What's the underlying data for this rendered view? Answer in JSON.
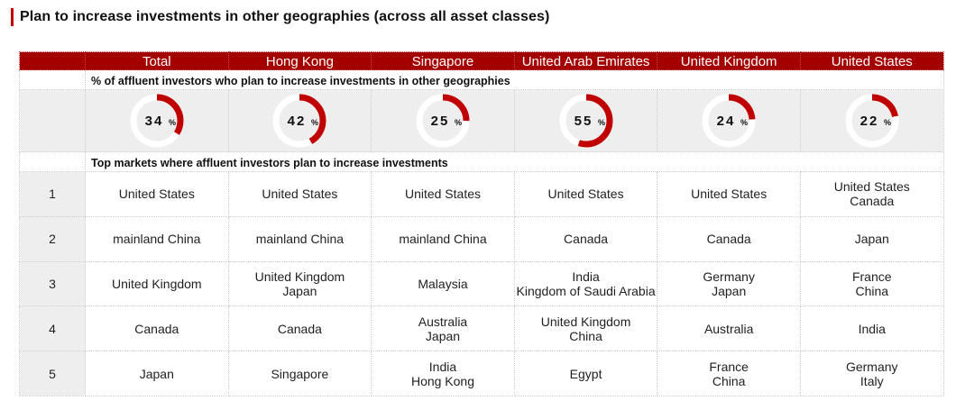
{
  "title": "Plan to increase investments in other geographies (across all asset classes)",
  "columns": [
    "Total",
    "Hong Kong",
    "Singapore",
    "United Arab Emirates",
    "United Kingdom",
    "United States"
  ],
  "section1_label": "% of affluent investors who plan to increase investments in other geographies",
  "section2_label": "Top markets where affluent investors plan to increase investments",
  "percent_symbol": "%",
  "colors": {
    "accent": "#c00000",
    "header_bg": "#a50000",
    "ring_track": "#ffffff",
    "row_band": "#eeeeee"
  },
  "chart_data": {
    "type": "table",
    "title": "Plan to increase investments in other geographies (across all asset classes)",
    "categories": [
      "Total",
      "Hong Kong",
      "Singapore",
      "United Arab Emirates",
      "United Kingdom",
      "United States"
    ],
    "series": [
      {
        "name": "% of affluent investors who plan to increase investments in other geographies",
        "values": [
          34,
          42,
          25,
          55,
          24,
          22
        ]
      }
    ],
    "value_labels": [
      "34",
      "42",
      "25",
      "55",
      "24",
      "22"
    ],
    "ranks": [
      "1",
      "2",
      "3",
      "4",
      "5"
    ],
    "top_markets": [
      [
        [
          "United States"
        ],
        [
          "United States"
        ],
        [
          "United States"
        ],
        [
          "United States"
        ],
        [
          "United States"
        ],
        [
          "United States",
          "Canada"
        ]
      ],
      [
        [
          "mainland China"
        ],
        [
          "mainland China"
        ],
        [
          "mainland China"
        ],
        [
          "Canada"
        ],
        [
          "Canada"
        ],
        [
          "Japan"
        ]
      ],
      [
        [
          "United Kingdom"
        ],
        [
          "United Kingdom",
          "Japan"
        ],
        [
          "Malaysia"
        ],
        [
          "India",
          "Kingdom of Saudi Arabia"
        ],
        [
          "Germany",
          "Japan"
        ],
        [
          "France",
          "China"
        ]
      ],
      [
        [
          "Canada"
        ],
        [
          "Canada"
        ],
        [
          "Australia",
          "Japan"
        ],
        [
          "United Kingdom",
          "China"
        ],
        [
          "Australia"
        ],
        [
          "India"
        ]
      ],
      [
        [
          "Japan"
        ],
        [
          "Singapore"
        ],
        [
          "India",
          "Hong Kong"
        ],
        [
          "Egypt"
        ],
        [
          "France",
          "China"
        ],
        [
          "Germany",
          "Italy"
        ]
      ]
    ]
  }
}
